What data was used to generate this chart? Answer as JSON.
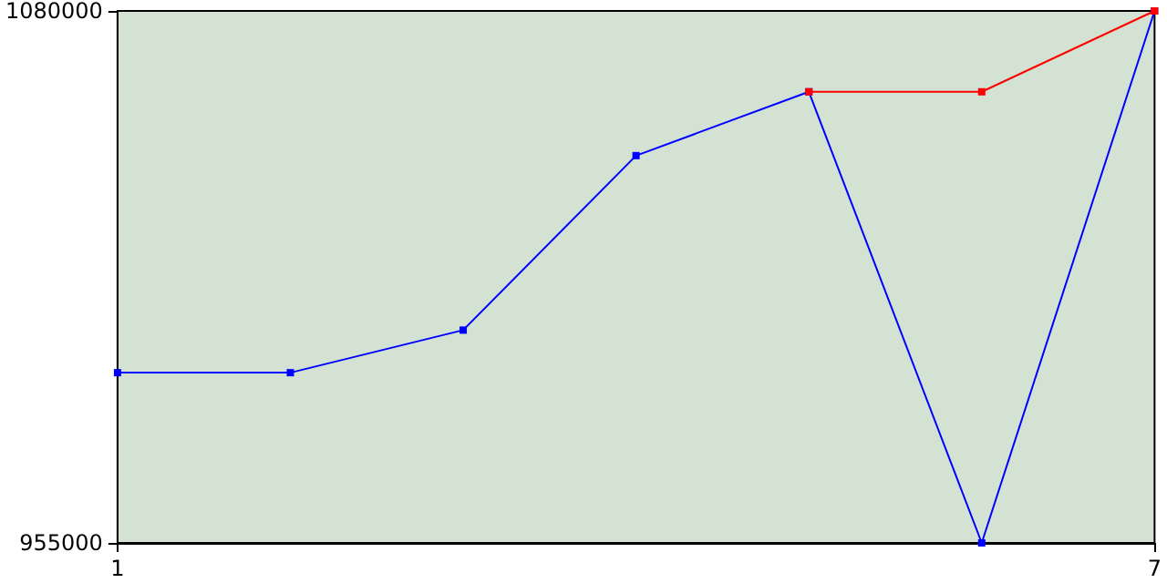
{
  "chart_data": {
    "type": "line",
    "x": [
      1,
      2,
      3,
      4,
      5,
      6,
      7
    ],
    "series": [
      {
        "color": "#0000ff",
        "values": [
          995000,
          995000,
          1005000,
          1046000,
          1061000,
          955000,
          1080000
        ]
      },
      {
        "color": "#ff0000",
        "values": [
          null,
          null,
          null,
          null,
          1061000,
          1061000,
          1080000
        ]
      }
    ],
    "xlim": [
      1,
      7
    ],
    "xticks": [
      1,
      7
    ],
    "ylim": [
      955000,
      1080000
    ],
    "yticks": [
      955000,
      1080000
    ],
    "grid": false,
    "marker": "square"
  }
}
